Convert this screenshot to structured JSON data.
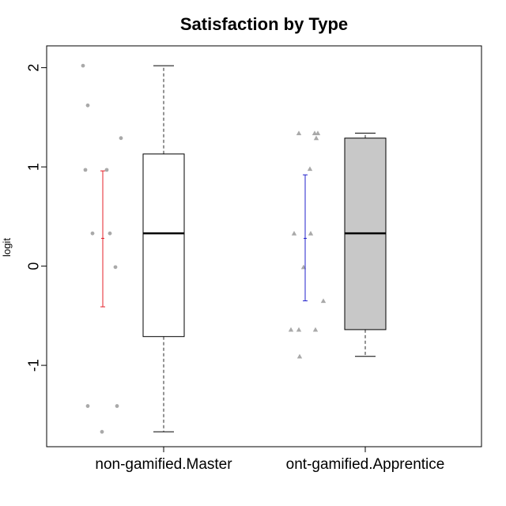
{
  "chart_data": {
    "type": "box",
    "title": "Satisfaction by Type",
    "xlabel": "",
    "ylabel": "logit",
    "ylim": [
      -1.82,
      2.22
    ],
    "yticks": [
      -1,
      0,
      1,
      2
    ],
    "ytick_labels": [
      "-1",
      "0",
      "1",
      "2"
    ],
    "grid": false,
    "categories": [
      "non-gamified.Master",
      "ont-gamified.Apprentice"
    ],
    "boxes": [
      {
        "category": "non-gamified.Master",
        "whisker_low": -1.67,
        "q1": -0.71,
        "median": 0.33,
        "q3": 1.13,
        "whisker_high": 2.02,
        "box_fill": "#ffffff",
        "mean": 0.28,
        "ci_low": -0.41,
        "ci_high": 0.96,
        "ci_color": "#e4202a",
        "point_shape": "circle",
        "points": [
          2.02,
          1.62,
          1.29,
          0.97,
          0.97,
          0.33,
          0.33,
          -0.01,
          -1.41,
          -1.41,
          -1.67
        ]
      },
      {
        "category": "ont-gamified.Apprentice",
        "whisker_low": -0.91,
        "q1": -0.64,
        "median": 0.33,
        "q3": 1.29,
        "whisker_high": 1.34,
        "box_fill": "#c8c8c8",
        "mean": 0.28,
        "ci_low": -0.35,
        "ci_high": 0.92,
        "ci_color": "#2222cc",
        "point_shape": "triangle",
        "points": [
          1.34,
          1.34,
          1.34,
          1.29,
          0.98,
          0.33,
          0.33,
          -0.01,
          -0.35,
          -0.64,
          -0.64,
          -0.64,
          -0.91
        ]
      }
    ]
  },
  "colors": {
    "points": "#a9a9a9",
    "whisker": "#7a7a7a",
    "axis": "#000000"
  }
}
